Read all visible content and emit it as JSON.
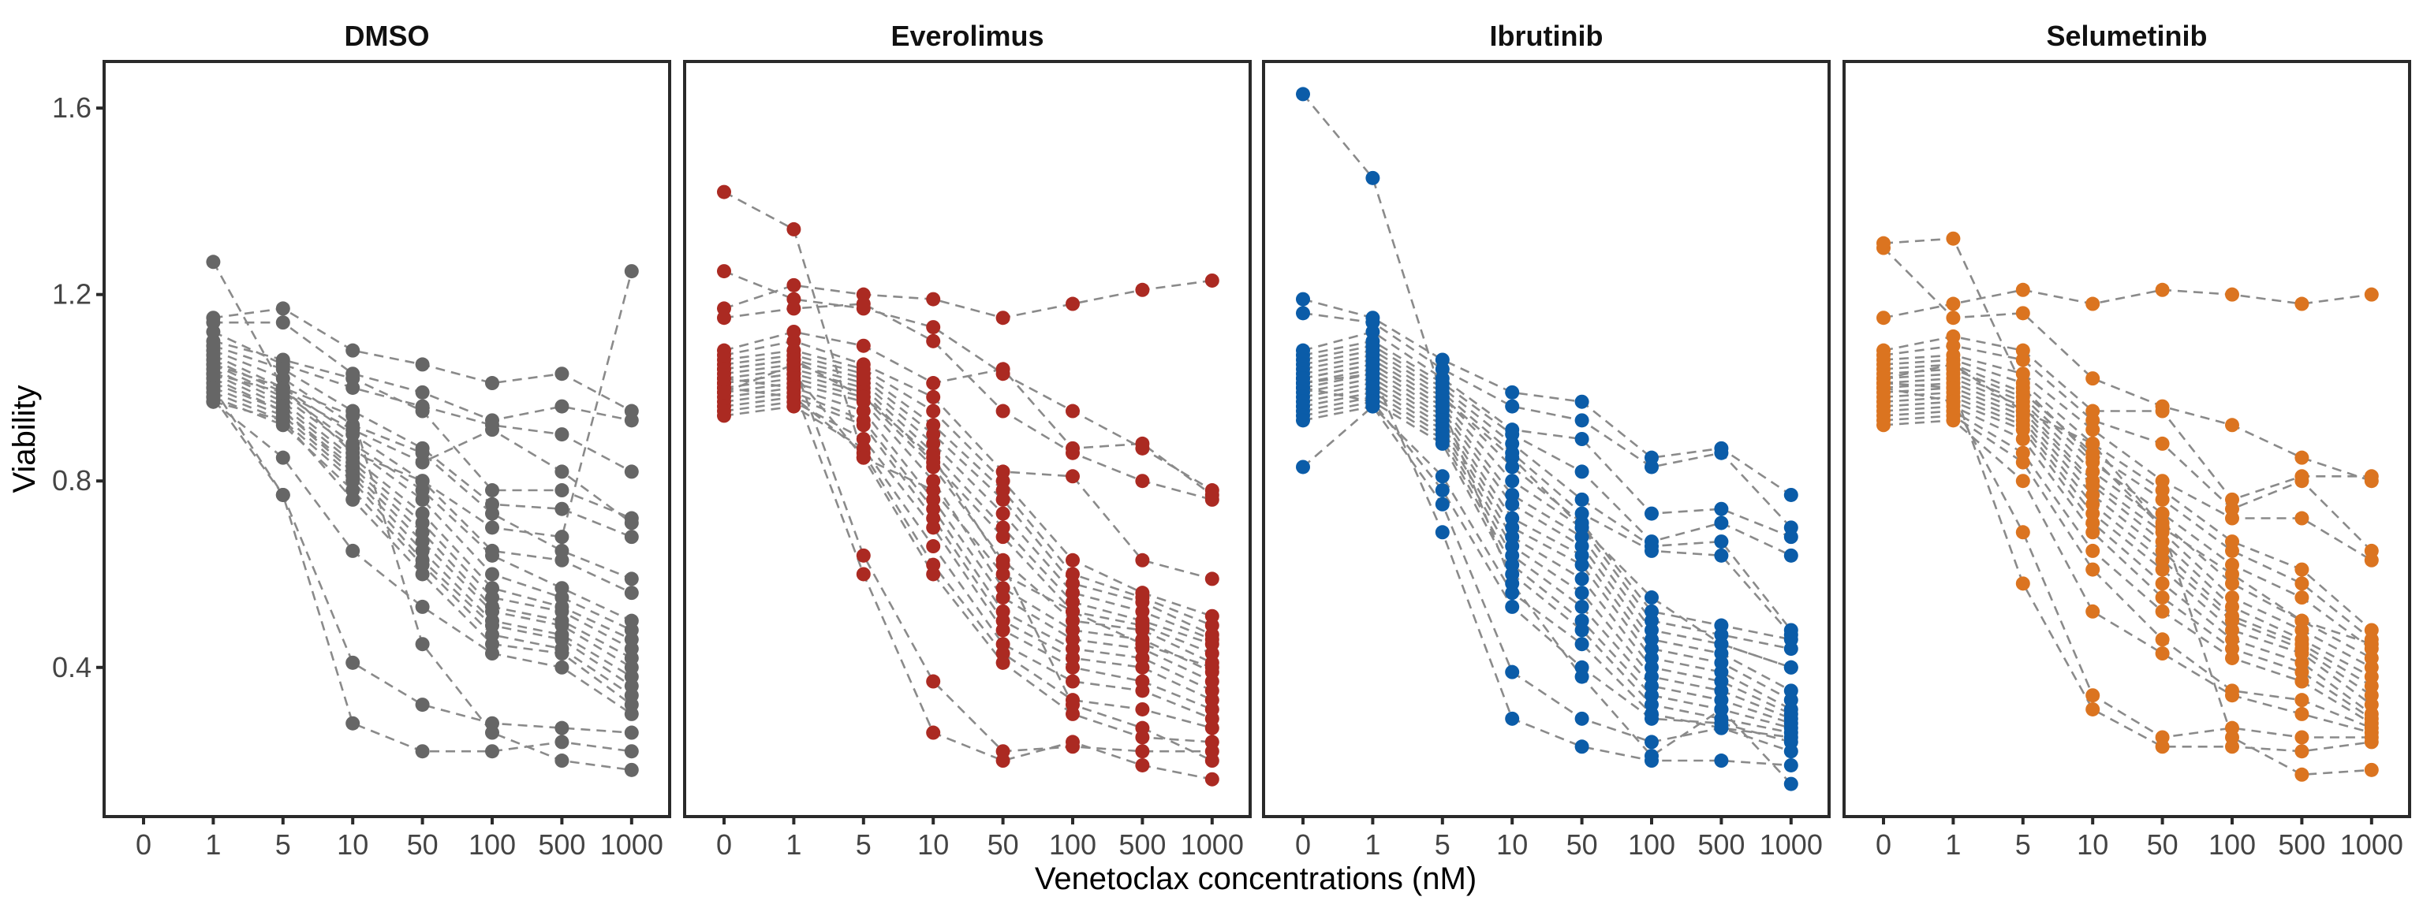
{
  "chart_data": {
    "type": "line",
    "subtype": "faceted dot-and-dashed-line (paired per sample)",
    "xlabel": "Venetoclax concentrations (nM)",
    "ylabel": "Viability",
    "categories": [
      "0",
      "1",
      "5",
      "10",
      "50",
      "100",
      "500",
      "1000"
    ],
    "ylim": [
      0.08,
      1.7
    ],
    "yticks": [
      0.4,
      0.8,
      1.2,
      1.6
    ],
    "ytick_labels": [
      "0.4",
      "0.8",
      "1.2",
      "1.6"
    ],
    "grid": false,
    "legend": "none",
    "line_color": "#888888",
    "line_style": "dashed",
    "facets": [
      {
        "title": "DMSO",
        "color": "#666666",
        "series": [
          [
            null,
            1.27,
            1.0,
            0.86,
            0.8,
            0.7,
            0.68,
            1.25
          ],
          [
            null,
            1.15,
            1.17,
            1.08,
            1.05,
            1.01,
            1.03,
            0.95
          ],
          [
            null,
            1.14,
            1.14,
            1.03,
            0.99,
            0.93,
            0.96,
            0.93
          ],
          [
            null,
            1.12,
            1.05,
            1.0,
            0.96,
            0.92,
            0.9,
            0.82
          ],
          [
            null,
            1.1,
            1.06,
            1.02,
            0.95,
            0.78,
            0.78,
            0.72
          ],
          [
            null,
            1.09,
            1.04,
            0.95,
            0.87,
            0.75,
            0.74,
            0.68
          ],
          [
            null,
            1.08,
            1.02,
            0.92,
            0.86,
            0.73,
            0.65,
            0.59
          ],
          [
            null,
            1.07,
            1.0,
            0.9,
            0.8,
            0.65,
            0.63,
            0.56
          ],
          [
            null,
            1.06,
            0.99,
            0.88,
            0.78,
            0.64,
            0.57,
            0.5
          ],
          [
            null,
            1.05,
            0.98,
            0.87,
            0.76,
            0.6,
            0.55,
            0.48
          ],
          [
            null,
            1.04,
            0.97,
            0.85,
            0.73,
            0.57,
            0.53,
            0.46
          ],
          [
            null,
            1.03,
            0.96,
            0.84,
            0.71,
            0.55,
            0.52,
            0.44
          ],
          [
            null,
            1.02,
            0.95,
            0.83,
            0.69,
            0.53,
            0.5,
            0.42
          ],
          [
            null,
            1.01,
            0.95,
            0.82,
            0.67,
            0.52,
            0.49,
            0.4
          ],
          [
            null,
            1.0,
            0.94,
            0.81,
            0.65,
            0.5,
            0.47,
            0.38
          ],
          [
            null,
            0.99,
            0.93,
            0.8,
            0.63,
            0.49,
            0.46,
            0.36
          ],
          [
            null,
            0.98,
            0.92,
            0.78,
            0.62,
            0.47,
            0.44,
            0.34
          ],
          [
            null,
            0.97,
            0.93,
            0.76,
            0.6,
            0.45,
            0.43,
            0.32
          ],
          [
            null,
            0.97,
            0.85,
            0.65,
            0.53,
            0.43,
            0.4,
            0.3
          ],
          [
            null,
            1.0,
            0.77,
            0.41,
            0.32,
            0.28,
            0.27,
            0.26
          ],
          [
            null,
            0.98,
            0.77,
            0.28,
            0.22,
            0.22,
            0.24,
            0.22
          ],
          [
            null,
            1.05,
            1.0,
            0.94,
            0.45,
            0.26,
            0.2,
            0.18
          ],
          [
            null,
            1.03,
            0.99,
            0.91,
            0.84,
            0.91,
            0.82,
            0.71
          ]
        ]
      },
      {
        "title": "Everolimus",
        "color": "#ab2a22",
        "series": [
          [
            1.42,
            1.34,
            0.85,
            0.78,
            0.6,
            0.52,
            0.45,
            0.4
          ],
          [
            1.25,
            1.19,
            1.17,
            1.13,
            1.03,
            0.95,
            0.87,
            0.78
          ],
          [
            1.17,
            1.22,
            1.2,
            1.19,
            1.15,
            1.18,
            1.21,
            1.23
          ],
          [
            1.15,
            1.17,
            1.18,
            1.1,
            0.95,
            0.86,
            0.8,
            0.76
          ],
          [
            1.08,
            1.12,
            1.09,
            1.01,
            1.04,
            0.87,
            0.88,
            0.77
          ],
          [
            1.07,
            1.1,
            1.05,
            0.98,
            0.82,
            0.81,
            0.63,
            0.59
          ],
          [
            1.06,
            1.08,
            1.04,
            0.95,
            0.8,
            0.63,
            0.56,
            0.51
          ],
          [
            1.05,
            1.07,
            1.03,
            0.92,
            0.78,
            0.6,
            0.55,
            0.49
          ],
          [
            1.04,
            1.06,
            1.02,
            0.9,
            0.76,
            0.58,
            0.54,
            0.47
          ],
          [
            1.03,
            1.05,
            1.01,
            0.88,
            0.73,
            0.56,
            0.52,
            0.46
          ],
          [
            1.02,
            1.04,
            1.0,
            0.86,
            0.7,
            0.54,
            0.5,
            0.45
          ],
          [
            1.01,
            1.03,
            0.99,
            0.84,
            0.68,
            0.52,
            0.49,
            0.43
          ],
          [
            1.0,
            1.02,
            0.98,
            0.83,
            0.63,
            0.5,
            0.48,
            0.41
          ],
          [
            0.99,
            1.01,
            0.97,
            0.8,
            0.57,
            0.48,
            0.46,
            0.39
          ],
          [
            0.98,
            1.0,
            0.95,
            0.76,
            0.55,
            0.46,
            0.44,
            0.37
          ],
          [
            0.97,
            0.99,
            0.93,
            0.74,
            0.52,
            0.44,
            0.42,
            0.35
          ],
          [
            0.96,
            0.98,
            0.92,
            0.72,
            0.5,
            0.42,
            0.4,
            0.33
          ],
          [
            0.95,
            0.97,
            0.89,
            0.7,
            0.48,
            0.4,
            0.37,
            0.31
          ],
          [
            0.94,
            0.96,
            0.87,
            0.66,
            0.45,
            0.37,
            0.35,
            0.29
          ],
          [
            1.0,
            0.98,
            0.86,
            0.62,
            0.43,
            0.33,
            0.31,
            0.27
          ],
          [
            1.01,
            1.03,
            0.85,
            0.6,
            0.41,
            0.3,
            0.25,
            0.24
          ],
          [
            0.99,
            1.05,
            0.64,
            0.37,
            0.22,
            0.23,
            0.22,
            0.22
          ],
          [
            1.02,
            1.0,
            0.6,
            0.26,
            0.2,
            0.24,
            0.19,
            0.16
          ],
          [
            1.04,
            1.06,
            0.98,
            0.85,
            0.62,
            0.32,
            0.27,
            0.2
          ]
        ]
      },
      {
        "title": "Ibrutinib",
        "color": "#0b5ca8",
        "series": [
          [
            1.63,
            1.45,
            0.98,
            0.85,
            0.7,
            0.55,
            0.45,
            0.4
          ],
          [
            1.19,
            1.15,
            1.06,
            0.99,
            0.97,
            0.85,
            0.87,
            0.77
          ],
          [
            1.16,
            1.14,
            1.04,
            0.96,
            0.93,
            0.83,
            0.86,
            0.7
          ],
          [
            1.08,
            1.12,
            1.02,
            0.91,
            0.89,
            0.73,
            0.74,
            0.68
          ],
          [
            1.07,
            1.1,
            1.01,
            0.9,
            0.82,
            0.67,
            0.71,
            0.64
          ],
          [
            1.06,
            1.09,
            1.0,
            0.88,
            0.76,
            0.66,
            0.67,
            0.48
          ],
          [
            1.05,
            1.08,
            0.99,
            0.86,
            0.73,
            0.65,
            0.64,
            0.47
          ],
          [
            1.04,
            1.07,
            0.98,
            0.83,
            0.71,
            0.52,
            0.49,
            0.46
          ],
          [
            1.03,
            1.06,
            0.97,
            0.8,
            0.7,
            0.5,
            0.47,
            0.44
          ],
          [
            1.02,
            1.05,
            0.96,
            0.77,
            0.68,
            0.48,
            0.45,
            0.4
          ],
          [
            1.01,
            1.04,
            0.95,
            0.75,
            0.66,
            0.46,
            0.43,
            0.35
          ],
          [
            1.0,
            1.03,
            0.94,
            0.72,
            0.64,
            0.44,
            0.41,
            0.33
          ],
          [
            0.99,
            1.02,
            0.93,
            0.7,
            0.62,
            0.42,
            0.39,
            0.31
          ],
          [
            0.98,
            1.01,
            0.92,
            0.68,
            0.59,
            0.4,
            0.37,
            0.3
          ],
          [
            0.97,
            1.0,
            0.91,
            0.66,
            0.56,
            0.38,
            0.35,
            0.29
          ],
          [
            0.96,
            0.99,
            0.9,
            0.64,
            0.53,
            0.36,
            0.33,
            0.28
          ],
          [
            0.95,
            0.98,
            0.89,
            0.62,
            0.5,
            0.34,
            0.31,
            0.27
          ],
          [
            0.94,
            0.97,
            0.88,
            0.6,
            0.48,
            0.32,
            0.29,
            0.26
          ],
          [
            0.93,
            0.96,
            0.81,
            0.56,
            0.45,
            0.3,
            0.27,
            0.25
          ],
          [
            1.0,
            0.97,
            0.78,
            0.53,
            0.4,
            0.29,
            0.28,
            0.24
          ],
          [
            0.83,
            0.96,
            0.75,
            0.39,
            0.29,
            0.24,
            0.27,
            0.22
          ],
          [
            1.01,
            1.03,
            0.69,
            0.29,
            0.23,
            0.2,
            0.2,
            0.19
          ],
          [
            1.02,
            1.05,
            0.96,
            0.58,
            0.38,
            0.21,
            0.31,
            0.15
          ]
        ]
      },
      {
        "title": "Selumetinib",
        "color": "#db7420",
        "series": [
          [
            1.31,
            1.32,
            1.0,
            0.85,
            0.7,
            0.6,
            0.5,
            0.45
          ],
          [
            1.3,
            1.15,
            1.16,
            1.02,
            0.96,
            0.92,
            0.85,
            0.8
          ],
          [
            1.15,
            1.18,
            1.21,
            1.18,
            1.21,
            1.2,
            1.18,
            1.2
          ],
          [
            1.08,
            1.11,
            1.08,
            0.95,
            0.95,
            0.76,
            0.81,
            0.81
          ],
          [
            1.07,
            1.09,
            1.06,
            0.93,
            0.88,
            0.74,
            0.8,
            0.65
          ],
          [
            1.06,
            1.07,
            1.03,
            0.91,
            0.8,
            0.72,
            0.72,
            0.63
          ],
          [
            1.05,
            1.06,
            1.01,
            0.88,
            0.78,
            0.67,
            0.61,
            0.48
          ],
          [
            1.04,
            1.05,
            0.99,
            0.86,
            0.76,
            0.65,
            0.58,
            0.46
          ],
          [
            1.03,
            1.04,
            0.98,
            0.84,
            0.73,
            0.62,
            0.55,
            0.44
          ],
          [
            1.02,
            1.03,
            0.97,
            0.82,
            0.71,
            0.58,
            0.5,
            0.42
          ],
          [
            1.01,
            1.02,
            0.96,
            0.8,
            0.69,
            0.55,
            0.48,
            0.4
          ],
          [
            1.0,
            1.01,
            0.95,
            0.79,
            0.67,
            0.53,
            0.46,
            0.38
          ],
          [
            0.99,
            1.0,
            0.94,
            0.77,
            0.65,
            0.51,
            0.45,
            0.36
          ],
          [
            0.98,
            0.99,
            0.93,
            0.75,
            0.63,
            0.5,
            0.44,
            0.34
          ],
          [
            0.97,
            0.98,
            0.92,
            0.73,
            0.61,
            0.48,
            0.43,
            0.32
          ],
          [
            0.96,
            0.97,
            0.91,
            0.71,
            0.58,
            0.46,
            0.41,
            0.3
          ],
          [
            0.95,
            0.96,
            0.89,
            0.69,
            0.55,
            0.44,
            0.39,
            0.29
          ],
          [
            0.94,
            0.95,
            0.86,
            0.65,
            0.52,
            0.42,
            0.37,
            0.28
          ],
          [
            0.93,
            0.94,
            0.84,
            0.61,
            0.46,
            0.35,
            0.33,
            0.27
          ],
          [
            0.92,
            0.93,
            0.8,
            0.52,
            0.43,
            0.34,
            0.3,
            0.26
          ],
          [
            1.0,
            0.97,
            0.69,
            0.34,
            0.25,
            0.27,
            0.25,
            0.25
          ],
          [
            1.01,
            1.0,
            0.58,
            0.31,
            0.23,
            0.23,
            0.22,
            0.24
          ],
          [
            1.02,
            1.05,
            0.95,
            0.88,
            0.7,
            0.25,
            0.17,
            0.18
          ]
        ]
      }
    ]
  }
}
